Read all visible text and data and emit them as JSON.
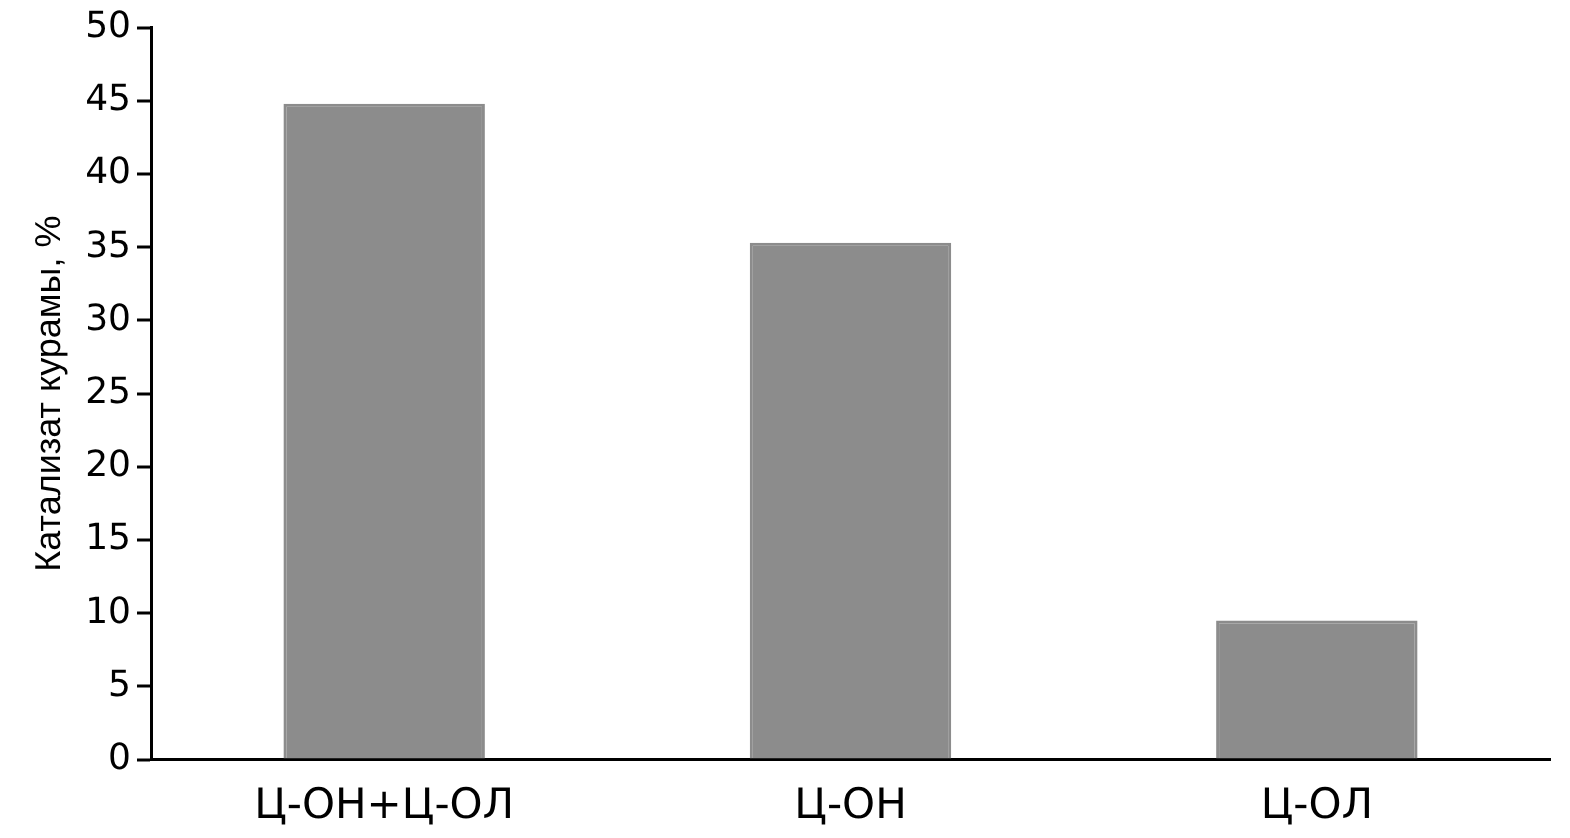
{
  "chart_data": {
    "type": "bar",
    "ylabel": "Катализат курамы, %",
    "categories": [
      "Ц-ОН+Ц-ОЛ",
      "Ц-ОН",
      "Ц-ОЛ"
    ],
    "values": [
      44.8,
      35.3,
      9.5
    ],
    "color": "#8c8c8c",
    "ylim": [
      0,
      50
    ],
    "yticks": [
      0,
      5,
      10,
      15,
      20,
      25,
      30,
      35,
      40,
      45,
      50
    ],
    "grid": false,
    "legend": false
  }
}
